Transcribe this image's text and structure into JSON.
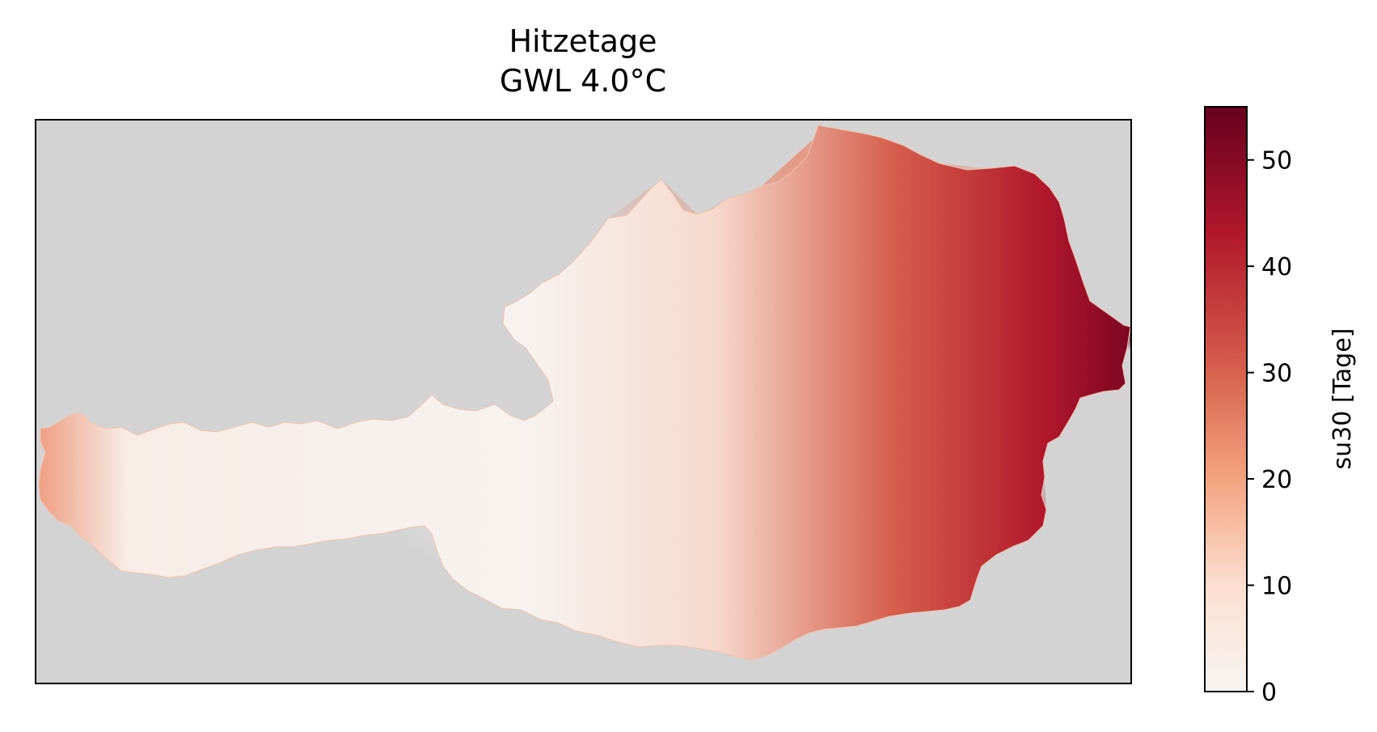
{
  "title_lines": [
    "Hitzetage",
    "GWL 4.0°C"
  ],
  "colors": {
    "background": "#d3d3d3",
    "map_low": "#f7f4f2",
    "map_mid": "#f4a582",
    "map_high": "#67001f"
  },
  "map": {
    "region": "Austria",
    "variable": "su30"
  },
  "colorbar": {
    "label": "su30 [Tage]",
    "ticks": [
      "0",
      "10",
      "20",
      "30",
      "40",
      "50"
    ],
    "vmin": 0,
    "vmax": 55,
    "colormap": "RdBu_r (white to dark red)"
  }
}
